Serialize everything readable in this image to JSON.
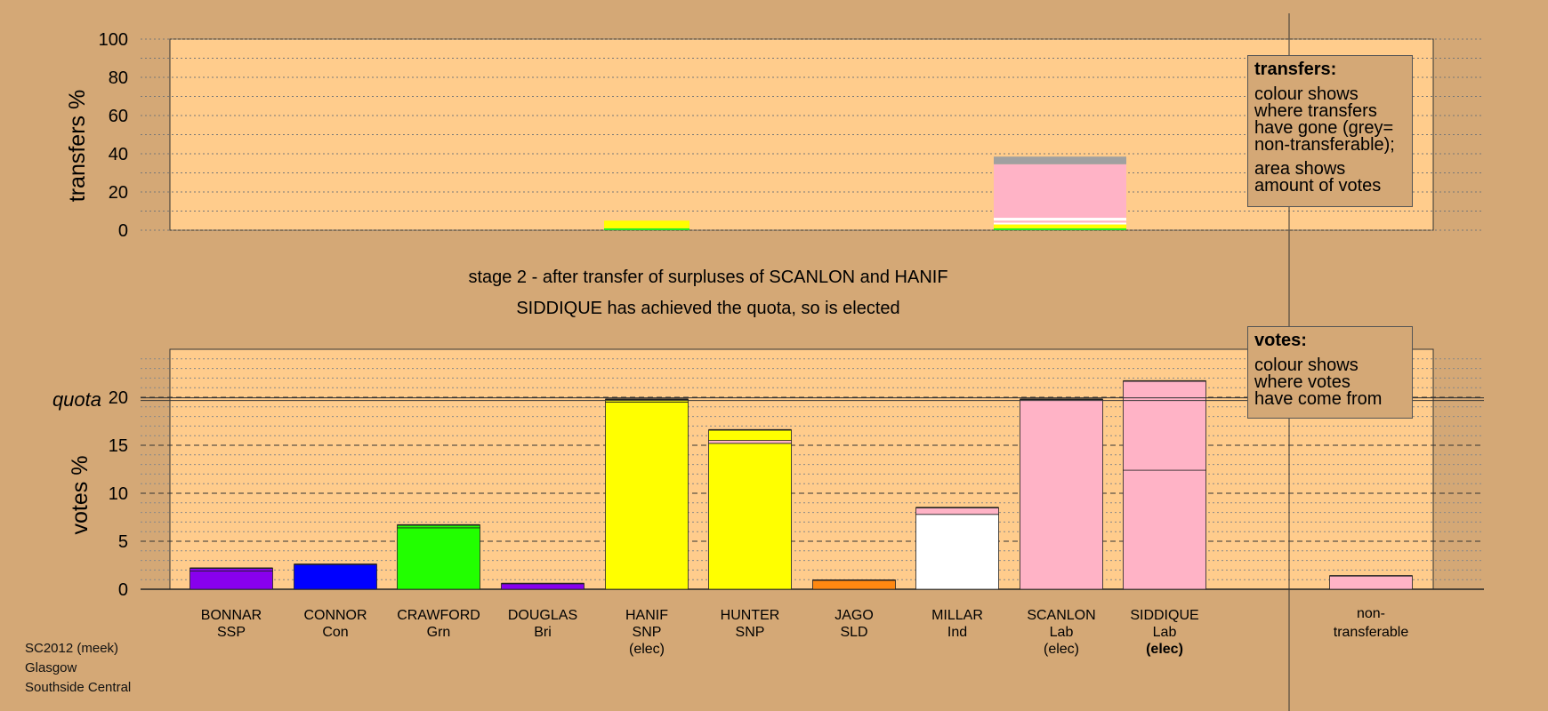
{
  "chart_data": [
    {
      "type": "bar",
      "ylabel": "transfers %",
      "ylim": [
        0,
        100
      ],
      "yticks": [
        0,
        20,
        40,
        60,
        80,
        100
      ],
      "grid": true,
      "bars": [
        {
          "category": "HANIF",
          "total": 5.0,
          "segments": [
            {
              "color": "#22ee22",
              "value": 1.0
            },
            {
              "color": "#ffff00",
              "value": 4.0
            }
          ]
        },
        {
          "category": "SCANLON",
          "total": 38.5,
          "segments": [
            {
              "color": "#22ee22",
              "value": 1.0
            },
            {
              "color": "#ffff00",
              "value": 2.0
            },
            {
              "color": "#ffffff",
              "value": 1.0
            },
            {
              "color": "#ffb3c6",
              "value": 1.0
            },
            {
              "color": "#ffffff",
              "value": 1.5
            },
            {
              "color": "#ffb3c6",
              "value": 28.0
            },
            {
              "color": "#a0a0a0",
              "value": 4.0
            }
          ]
        }
      ]
    },
    {
      "type": "bar",
      "ylabel": "votes %",
      "ylim": [
        0,
        25
      ],
      "yticks": [
        0,
        5,
        10,
        15,
        20
      ],
      "quota": 19.8,
      "quota_label": "quota",
      "categories": [
        "BONNAR",
        "CONNOR",
        "CRAWFORD",
        "DOUGLAS",
        "HANIF",
        "HUNTER",
        "JAGO",
        "MILLAR",
        "SCANLON",
        "SIDDIQUE",
        "non-transferable"
      ],
      "bars": [
        {
          "category": "BONNAR",
          "total": 2.2,
          "segments": [
            {
              "color": "#8800ee",
              "value": 1.9
            },
            {
              "color": "#8800ee",
              "value": 0.3
            }
          ]
        },
        {
          "category": "CONNOR",
          "total": 2.6,
          "segments": [
            {
              "color": "#0000ff",
              "value": 2.6
            }
          ]
        },
        {
          "category": "CRAWFORD",
          "total": 6.7,
          "segments": [
            {
              "color": "#22ff00",
              "value": 6.4
            },
            {
              "color": "#22ff00",
              "value": 0.3
            }
          ]
        },
        {
          "category": "DOUGLAS",
          "total": 0.6,
          "segments": [
            {
              "color": "#8800ee",
              "value": 0.6
            }
          ]
        },
        {
          "category": "HANIF",
          "total": 19.8,
          "segments": [
            {
              "color": "#ffff00",
              "value": 19.5
            },
            {
              "color": "#ffff00",
              "value": 0.3
            }
          ]
        },
        {
          "category": "HUNTER",
          "total": 16.6,
          "segments": [
            {
              "color": "#ffff00",
              "value": 15.2
            },
            {
              "color": "#ffb3c6",
              "value": 0.3
            },
            {
              "color": "#ffff00",
              "value": 1.1
            }
          ]
        },
        {
          "category": "JAGO",
          "total": 0.95,
          "segments": [
            {
              "color": "#ff8811",
              "value": 0.95
            }
          ]
        },
        {
          "category": "MILLAR",
          "total": 8.5,
          "segments": [
            {
              "color": "#ffffff",
              "value": 7.8
            },
            {
              "color": "#ffb3c6",
              "value": 0.7
            }
          ]
        },
        {
          "category": "SCANLON",
          "total": 19.8,
          "segments": [
            {
              "color": "#ffb3c6",
              "value": 19.8
            }
          ]
        },
        {
          "category": "SIDDIQUE",
          "total": 21.7,
          "segments": [
            {
              "color": "#ffb3c6",
              "value": 12.4
            },
            {
              "color": "#ffb3c6",
              "value": 9.3
            }
          ]
        },
        {
          "category": "non-transferable",
          "total": 1.4,
          "segments": [
            {
              "color": "#ffb3c6",
              "value": 1.4
            }
          ]
        }
      ]
    }
  ],
  "title": {
    "line1": "stage 2 - after transfer of surpluses of SCANLON and HANIF",
    "line2": "SIDDIQUE has achieved the quota, so is elected"
  },
  "candidates": [
    {
      "name": "BONNAR",
      "party": "SSP",
      "status": ""
    },
    {
      "name": "CONNOR",
      "party": "Con",
      "status": ""
    },
    {
      "name": "CRAWFORD",
      "party": "Grn",
      "status": ""
    },
    {
      "name": "DOUGLAS",
      "party": "Bri",
      "status": ""
    },
    {
      "name": "HANIF",
      "party": "SNP",
      "status": "(elec)"
    },
    {
      "name": "HUNTER",
      "party": "SNP",
      "status": ""
    },
    {
      "name": "JAGO",
      "party": "SLD",
      "status": ""
    },
    {
      "name": "MILLAR",
      "party": "Ind",
      "status": ""
    },
    {
      "name": "SCANLON",
      "party": "Lab",
      "status": "(elec)"
    },
    {
      "name": "SIDDIQUE",
      "party": "Lab",
      "status": "(elec)",
      "status_bold": true
    }
  ],
  "nontransferable": {
    "line1": "non-",
    "line2": "transferable"
  },
  "legend_transfers": {
    "title": "transfers:",
    "lines": [
      "colour shows",
      "where transfers",
      "have gone (grey=",
      "non-transferable);"
    ],
    "lines2": [
      "area shows",
      "amount of votes"
    ]
  },
  "legend_votes": {
    "title": "votes:",
    "lines": [
      "colour shows",
      "where votes",
      "have come from"
    ]
  },
  "footer": {
    "line1": "SC2012 (meek)",
    "line2": "Glasgow",
    "line3": "Southside Central"
  },
  "colors": {
    "background": "#d4a876",
    "panel": "#ffcc8c"
  }
}
